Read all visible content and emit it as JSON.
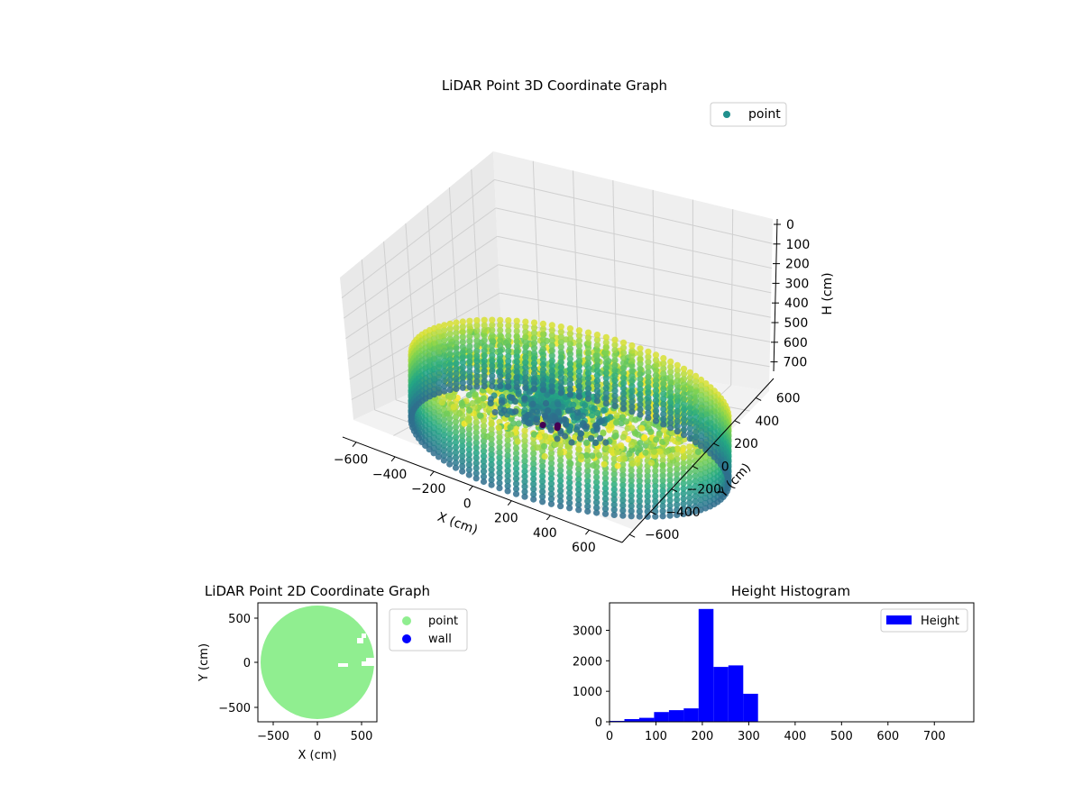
{
  "chart_data": [
    {
      "type": "scatter",
      "projection": "3d",
      "title": "LiDAR Point 3D Coordinate Graph",
      "xlabel": "X (cm)",
      "ylabel": "Y (cm)",
      "zlabel": "H (cm)",
      "x_ticks": [
        "−600",
        "−400",
        "−200",
        "0",
        "200",
        "400",
        "600"
      ],
      "y_ticks": [
        "−600",
        "−400",
        "−200",
        "0",
        "200",
        "400",
        "600"
      ],
      "z_ticks": [
        "0",
        "100",
        "200",
        "300",
        "400",
        "500",
        "600",
        "700"
      ],
      "xlim": [
        -650,
        650
      ],
      "ylim": [
        -650,
        650
      ],
      "zlim": [
        780,
        0
      ],
      "z_inverted": true,
      "colormap": "viridis",
      "grid": true,
      "legend": {
        "position": "top-right",
        "entries": [
          {
            "label": "point",
            "color": "#21908d"
          }
        ]
      },
      "point_groups": [
        {
          "name": "wall ring",
          "radius": 650,
          "h_range": [
            20,
            320
          ]
        },
        {
          "name": "floor",
          "radius_range": [
            0,
            600
          ],
          "h_range": [
            180,
            320
          ]
        },
        {
          "name": "central structure",
          "center": [
            -150,
            120
          ],
          "h_range": [
            40,
            250
          ]
        }
      ]
    },
    {
      "type": "scatter",
      "title": "LiDAR Point 2D Coordinate Graph",
      "xlabel": "X (cm)",
      "ylabel": "Y (cm)",
      "x_ticks": [
        "−500",
        "0",
        "500"
      ],
      "y_ticks": [
        "500",
        "0",
        "−500"
      ],
      "xlim": [
        -650,
        650
      ],
      "ylim": [
        -680,
        680
      ],
      "grid": false,
      "legend": {
        "position": "outside-right",
        "entries": [
          {
            "label": "point",
            "color": "#90ee90"
          },
          {
            "label": "wall",
            "color": "#0000ff"
          }
        ]
      },
      "series": [
        {
          "name": "point",
          "color": "#90ee90",
          "shape": "disc",
          "radius": 650
        },
        {
          "name": "wall",
          "color": "#0000ff",
          "points": []
        }
      ]
    },
    {
      "type": "bar",
      "subtype": "histogram",
      "title": "Height Histogram",
      "xlabel": "",
      "ylabel": "",
      "x_ticks": [
        "0",
        "100",
        "200",
        "300",
        "400",
        "500",
        "600",
        "700"
      ],
      "y_ticks": [
        "0",
        "1000",
        "2000",
        "3000"
      ],
      "xlim": [
        0,
        785
      ],
      "ylim": [
        0,
        3900
      ],
      "bin_width": 32,
      "color": "#0000ff",
      "legend": {
        "position": "top-right",
        "entries": [
          {
            "label": "Height",
            "color": "#0000ff"
          }
        ]
      },
      "bins": [
        {
          "x0": 0,
          "value": 30
        },
        {
          "x0": 32,
          "value": 90
        },
        {
          "x0": 64,
          "value": 130
        },
        {
          "x0": 96,
          "value": 320
        },
        {
          "x0": 128,
          "value": 380
        },
        {
          "x0": 160,
          "value": 440
        },
        {
          "x0": 192,
          "value": 3700
        },
        {
          "x0": 224,
          "value": 1800
        },
        {
          "x0": 256,
          "value": 1850
        },
        {
          "x0": 288,
          "value": 920
        }
      ]
    }
  ]
}
